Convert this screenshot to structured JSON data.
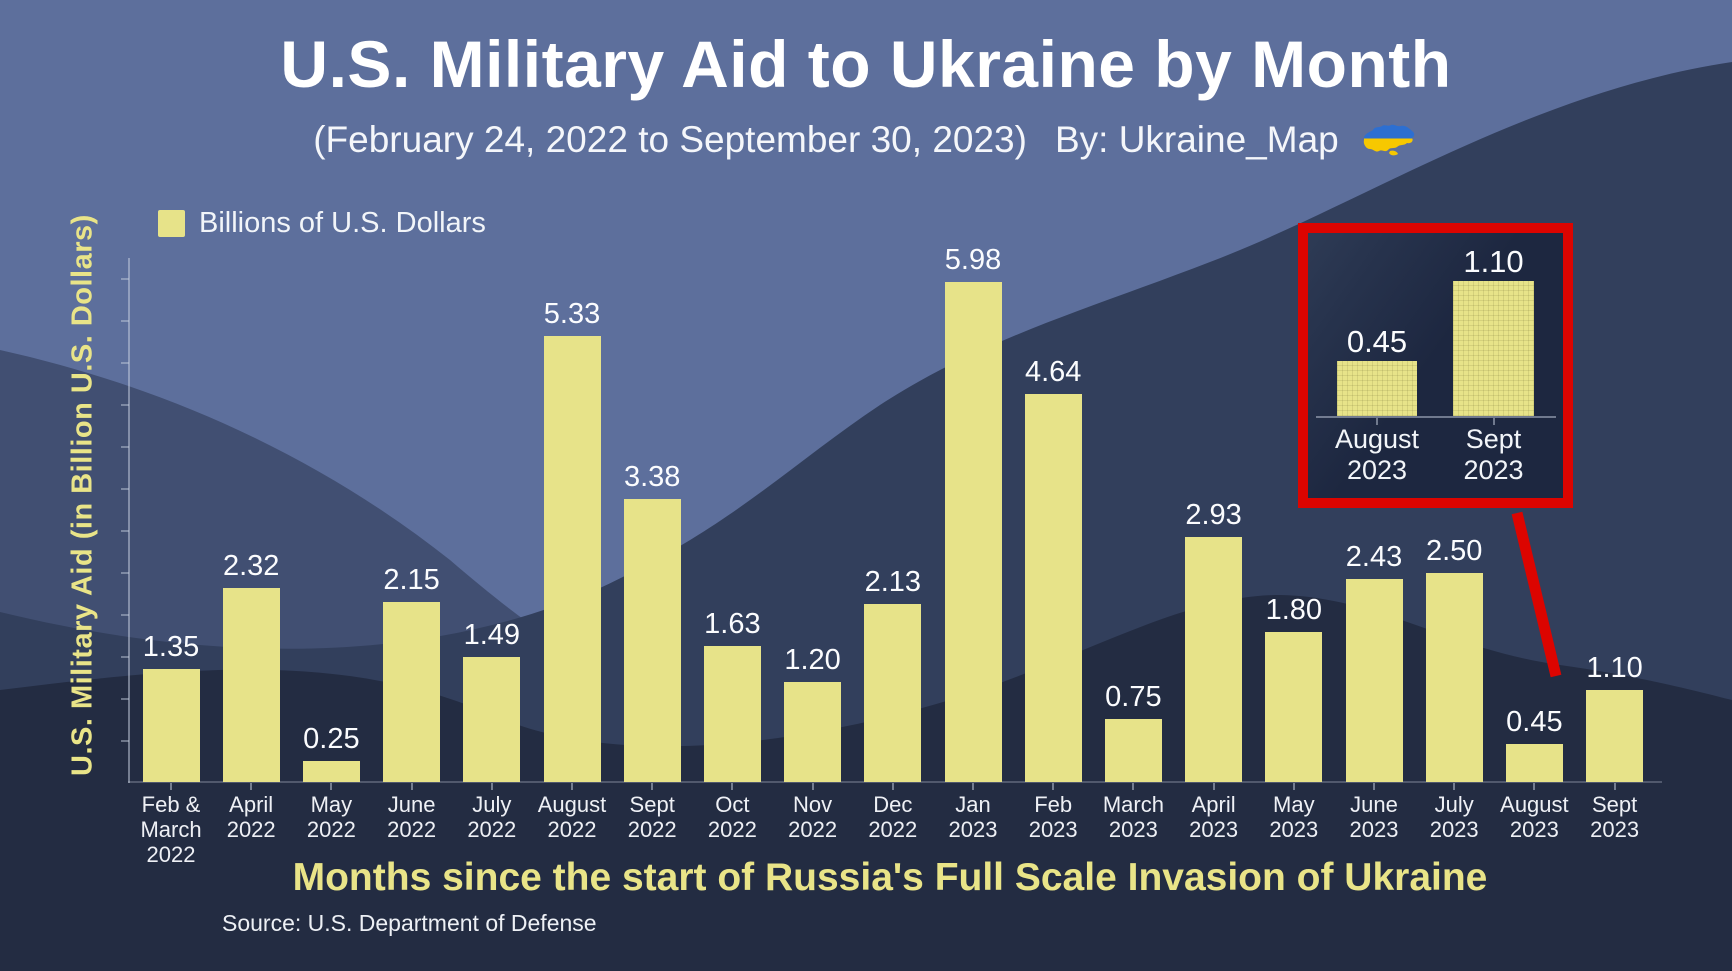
{
  "header": {
    "title": "U.S. Military Aid to Ukraine by Month",
    "subtitle": "(February 24, 2022 to September 30, 2023)",
    "byline": "By: Ukraine_Map"
  },
  "legend": {
    "items": [
      {
        "label": "Billions of U.S. Dollars",
        "color": "#e7e389"
      }
    ]
  },
  "axes": {
    "ylabel": "U.S. Military Aid (in Billion U.S. Dollars)",
    "xlabel": "Months since the start of Russia's Full Scale Invasion of Ukraine"
  },
  "footer": {
    "source": "Source: U.S. Department of Defense"
  },
  "colors": {
    "bar_yellow": "#e7e389",
    "accent_yellow_text": "#e9e488",
    "highlight_red": "#dc0400",
    "bg_top_slate": "#5d6f9c",
    "bg_mid_slate": "#414f72",
    "bg_dark_slate": "#323f5c",
    "bg_darkest_navy": "#232c42",
    "text_white": "#ffffff",
    "flag_blue": "#2d6fd1",
    "flag_yellow": "#f7c800"
  },
  "chart_data": {
    "type": "bar",
    "title": "U.S. Military Aid to Ukraine by Month",
    "subtitle": "(February 24, 2022 to September 30, 2023)",
    "byline": "By: Ukraine_Map",
    "legend": [
      "Billions of U.S. Dollars"
    ],
    "legend_position": "top-left",
    "xlabel": "Months since the start of Russia's Full Scale Invasion of Ukraine",
    "ylabel": "U.S. Military Aid (in Billion U.S. Dollars)",
    "source": "Source: U.S. Department of Defense",
    "grid": false,
    "ylim": [
      0,
      6.5
    ],
    "bar_color": "#e7e389",
    "categories": [
      "Feb & March 2022",
      "April 2022",
      "May 2022",
      "June 2022",
      "July 2022",
      "August 2022",
      "Sept 2022",
      "Oct 2022",
      "Nov 2022",
      "Dec 2022",
      "Jan 2023",
      "Feb 2023",
      "March 2023",
      "April 2023",
      "May 2023",
      "June 2023",
      "July 2023",
      "August 2023",
      "Sept 2023"
    ],
    "category_lines": [
      [
        "Feb &",
        "March",
        "2022"
      ],
      [
        "April",
        "2022"
      ],
      [
        "May",
        "2022"
      ],
      [
        "June",
        "2022"
      ],
      [
        "July",
        "2022"
      ],
      [
        "August",
        "2022"
      ],
      [
        "Sept",
        "2022"
      ],
      [
        "Oct",
        "2022"
      ],
      [
        "Nov",
        "2022"
      ],
      [
        "Dec",
        "2022"
      ],
      [
        "Jan",
        "2023"
      ],
      [
        "Feb",
        "2023"
      ],
      [
        "March",
        "2023"
      ],
      [
        "April",
        "2023"
      ],
      [
        "May",
        "2023"
      ],
      [
        "June",
        "2023"
      ],
      [
        "July",
        "2023"
      ],
      [
        "August",
        "2023"
      ],
      [
        "Sept",
        "2023"
      ]
    ],
    "values": [
      1.35,
      2.32,
      0.25,
      2.15,
      1.49,
      5.33,
      3.38,
      1.63,
      1.2,
      2.13,
      5.98,
      4.64,
      0.75,
      2.93,
      1.8,
      2.43,
      2.5,
      0.45,
      1.1
    ],
    "value_labels": [
      "1.35",
      "2.32",
      "0.25",
      "2.15",
      "1.49",
      "5.33",
      "3.38",
      "1.63",
      "1.20",
      "2.13",
      "5.98",
      "4.64",
      "0.75",
      "2.93",
      "1.80",
      "2.43",
      "2.50",
      "0.45",
      "1.10"
    ],
    "inset": {
      "type": "bar",
      "categories": [
        "August 2023",
        "Sept 2023"
      ],
      "category_lines": [
        [
          "August",
          "2023"
        ],
        [
          "Sept",
          "2023"
        ]
      ],
      "values": [
        0.45,
        1.1
      ],
      "value_labels": [
        "0.45",
        "1.10"
      ],
      "border_color": "#dc0400"
    }
  }
}
